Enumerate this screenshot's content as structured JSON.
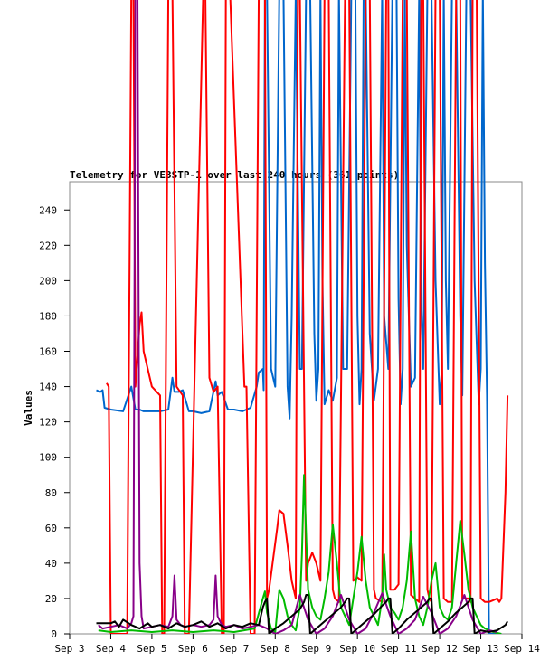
{
  "chart_data": {
    "type": "line",
    "title": "Telemetry for VE3STP-1 over last 240 hours (361 points)",
    "xlabel": "",
    "ylabel": "Values",
    "x_ticks": [
      "Sep 3",
      "Sep 4",
      "Sep 5",
      "Sep 6",
      "Sep 7",
      "Sep 8",
      "Sep 9",
      "Sep 10",
      "Sep 11",
      "Sep 12",
      "Sep 13",
      "Sep 14"
    ],
    "xlim": [
      0,
      11
    ],
    "ylim": [
      0,
      256
    ],
    "y_ticks": [
      0,
      20,
      40,
      60,
      80,
      100,
      120,
      140,
      160,
      180,
      200,
      220,
      240
    ],
    "grid": false,
    "series": [
      {
        "color": "#0066cc",
        "x": [
          0.65,
          0.75,
          0.8,
          0.85,
          1.0,
          1.3,
          1.5,
          1.6,
          1.7,
          1.8,
          2.0,
          2.2,
          2.4,
          2.5,
          2.55,
          2.65,
          2.75,
          2.9,
          3.0,
          3.2,
          3.4,
          3.55,
          3.6,
          3.7,
          3.85,
          4.0,
          4.2,
          4.4,
          4.55,
          4.6,
          4.7,
          4.72,
          4.75,
          4.8,
          4.9,
          5.0,
          5.1,
          5.2,
          5.3,
          5.35,
          5.4,
          5.5,
          5.6,
          5.65,
          5.75,
          5.85,
          5.95,
          6.0,
          6.05,
          6.1,
          6.15,
          6.2,
          6.3,
          6.4,
          6.5,
          6.55,
          6.65,
          6.75,
          6.85,
          6.95,
          7.0,
          7.05,
          7.1,
          7.15,
          7.2,
          7.3,
          7.4,
          7.5,
          7.6,
          7.65,
          7.75,
          7.85,
          7.95,
          8.0,
          8.05,
          8.1,
          8.15,
          8.2,
          8.3,
          8.4,
          8.5,
          8.55,
          8.6,
          8.7,
          8.8,
          8.9,
          9.0,
          9.05,
          9.1,
          9.15,
          9.2,
          9.3,
          9.4,
          9.5,
          9.55,
          9.65,
          9.75,
          9.85,
          9.95,
          10.0,
          10.05,
          10.1,
          10.15,
          10.2,
          10.3,
          10.4,
          10.45,
          10.5
        ],
        "y": [
          138,
          137,
          138,
          128,
          127,
          126,
          140,
          127,
          127,
          126,
          126,
          126,
          127,
          145,
          137,
          137,
          138,
          126,
          126,
          125,
          126,
          143,
          135,
          137,
          127,
          127,
          126,
          128,
          140,
          148,
          150,
          138,
          256,
          256,
          150,
          140,
          256,
          256,
          140,
          122,
          180,
          256,
          150,
          150,
          256,
          256,
          170,
          132,
          150,
          256,
          200,
          130,
          138,
          132,
          145,
          256,
          150,
          150,
          256,
          256,
          180,
          130,
          150,
          256,
          256,
          170,
          132,
          150,
          256,
          180,
          150,
          256,
          256,
          190,
          130,
          150,
          256,
          220,
          140,
          145,
          256,
          190,
          150,
          256,
          256,
          200,
          130,
          150,
          256,
          200,
          150,
          256,
          256,
          180,
          135,
          256,
          256,
          200,
          130,
          150,
          256,
          210,
          135,
          0,
          0,
          0,
          0,
          0
        ]
      },
      {
        "color": "#ff0000",
        "x": [
          0.9,
          0.95,
          1.0,
          1.05,
          1.4,
          1.5,
          1.55,
          1.6,
          1.7,
          1.75,
          1.8,
          2.0,
          2.2,
          2.25,
          2.3,
          2.4,
          2.5,
          2.6,
          2.75,
          2.8,
          2.9,
          3.25,
          3.3,
          3.4,
          3.5,
          3.6,
          3.7,
          3.75,
          3.8,
          3.9,
          4.25,
          4.3,
          4.4,
          4.5,
          4.6,
          4.75,
          4.8,
          4.85,
          5.05,
          5.1,
          5.2,
          5.3,
          5.4,
          5.5,
          5.55,
          5.6,
          5.75,
          5.8,
          5.9,
          6.0,
          6.1,
          6.2,
          6.3,
          6.4,
          6.45,
          6.55,
          6.7,
          6.8,
          6.9,
          7.0,
          7.1,
          7.2,
          7.3,
          7.4,
          7.45,
          7.6,
          7.7,
          7.75,
          7.8,
          7.9,
          8.0,
          8.1,
          8.2,
          8.3,
          8.4,
          8.5,
          8.55,
          8.6,
          8.7,
          8.75,
          8.8,
          8.9,
          9.0,
          9.1,
          9.2,
          9.3,
          9.4,
          9.5,
          9.55,
          9.7,
          9.75,
          9.8,
          9.9,
          10.0,
          10.1,
          10.2,
          10.3,
          10.4,
          10.45,
          10.5,
          10.6,
          10.65
        ],
        "y": [
          142,
          140,
          0,
          0,
          0,
          256,
          256,
          140,
          175,
          182,
          160,
          140,
          135,
          0,
          0,
          256,
          256,
          140,
          135,
          0,
          0,
          256,
          256,
          145,
          137,
          140,
          0,
          0,
          256,
          256,
          140,
          140,
          0,
          0,
          256,
          256,
          20,
          25,
          60,
          70,
          68,
          50,
          30,
          20,
          256,
          256,
          30,
          40,
          46,
          40,
          30,
          256,
          256,
          25,
          20,
          18,
          256,
          256,
          30,
          32,
          30,
          256,
          256,
          25,
          20,
          18,
          256,
          256,
          25,
          25,
          28,
          256,
          256,
          22,
          20,
          18,
          256,
          256,
          25,
          20,
          18,
          256,
          256,
          20,
          18,
          18,
          256,
          256,
          20,
          20,
          18,
          256,
          256,
          20,
          18,
          18,
          19,
          20,
          18,
          20,
          80,
          135
        ]
      },
      {
        "color": "#00bb00",
        "x": [
          0.7,
          1.0,
          1.5,
          2.0,
          2.5,
          3.0,
          3.5,
          4.0,
          4.5,
          4.7,
          4.75,
          4.8,
          4.9,
          5.0,
          5.1,
          5.2,
          5.3,
          5.4,
          5.5,
          5.6,
          5.65,
          5.7,
          5.8,
          5.9,
          6.0,
          6.1,
          6.2,
          6.3,
          6.4,
          6.5,
          6.6,
          6.7,
          6.8,
          6.9,
          7.0,
          7.1,
          7.2,
          7.3,
          7.4,
          7.5,
          7.6,
          7.65,
          7.7,
          7.8,
          7.9,
          8.0,
          8.1,
          8.2,
          8.3,
          8.4,
          8.5,
          8.6,
          8.7,
          8.8,
          8.9,
          9.0,
          9.1,
          9.2,
          9.3,
          9.4,
          9.5,
          9.6,
          9.7,
          9.8,
          9.9,
          10.0,
          10.1,
          10.2,
          10.3,
          10.5
        ],
        "y": [
          2,
          1,
          2,
          1,
          2,
          1,
          2,
          1,
          3,
          20,
          24,
          12,
          3,
          1,
          25,
          20,
          10,
          5,
          2,
          15,
          45,
          90,
          25,
          15,
          10,
          8,
          20,
          35,
          62,
          40,
          15,
          10,
          5,
          20,
          35,
          55,
          30,
          15,
          10,
          5,
          20,
          45,
          25,
          15,
          12,
          8,
          15,
          30,
          58,
          20,
          10,
          5,
          15,
          30,
          40,
          15,
          10,
          8,
          15,
          40,
          64,
          45,
          25,
          15,
          10,
          5,
          3,
          2,
          1,
          0
        ]
      },
      {
        "color": "#880088",
        "x": [
          0.7,
          0.8,
          1.0,
          1.2,
          1.4,
          1.5,
          1.55,
          1.6,
          1.62,
          1.65,
          1.7,
          1.75,
          1.8,
          2.0,
          2.2,
          2.4,
          2.5,
          2.55,
          2.6,
          2.7,
          2.8,
          3.0,
          3.2,
          3.4,
          3.5,
          3.55,
          3.6,
          3.7,
          3.8,
          4.0,
          4.2,
          4.4,
          4.6,
          4.8,
          5.0,
          5.2,
          5.4,
          5.6,
          5.8,
          6.0,
          6.2,
          6.4,
          6.6,
          6.8,
          7.0,
          7.2,
          7.4,
          7.6,
          7.8,
          8.0,
          8.2,
          8.4,
          8.6,
          8.8,
          9.0,
          9.2,
          9.4,
          9.6,
          9.8,
          10.0,
          10.2,
          10.4
        ],
        "y": [
          5,
          3,
          4,
          5,
          3,
          6,
          10,
          256,
          256,
          256,
          40,
          10,
          3,
          4,
          5,
          4,
          10,
          33,
          8,
          5,
          4,
          5,
          4,
          5,
          8,
          33,
          10,
          5,
          4,
          5,
          3,
          4,
          5,
          3,
          0,
          2,
          5,
          22,
          8,
          0,
          3,
          10,
          22,
          8,
          0,
          3,
          12,
          23,
          10,
          0,
          3,
          8,
          21,
          12,
          0,
          3,
          10,
          22,
          8,
          0,
          2,
          1
        ]
      },
      {
        "color": "#000000",
        "x": [
          0.65,
          1.0,
          1.1,
          1.2,
          1.3,
          1.5,
          1.7,
          1.9,
          2.0,
          2.2,
          2.4,
          2.6,
          2.8,
          3.0,
          3.2,
          3.4,
          3.6,
          3.8,
          4.0,
          4.2,
          4.4,
          4.6,
          4.7,
          4.75,
          4.8,
          4.85,
          5.0,
          5.2,
          5.4,
          5.6,
          5.7,
          5.75,
          5.8,
          5.85,
          6.0,
          6.2,
          6.4,
          6.6,
          6.7,
          6.75,
          6.8,
          6.85,
          7.0,
          7.2,
          7.4,
          7.6,
          7.7,
          7.75,
          7.8,
          7.85,
          8.0,
          8.2,
          8.4,
          8.6,
          8.7,
          8.75,
          8.8,
          8.85,
          9.0,
          9.2,
          9.4,
          9.6,
          9.7,
          9.75,
          9.8,
          9.85,
          10.0,
          10.2,
          10.4,
          10.6,
          10.65
        ],
        "y": [
          6,
          6,
          7,
          4,
          8,
          5,
          3,
          6,
          4,
          5,
          3,
          6,
          4,
          5,
          7,
          4,
          6,
          3,
          5,
          4,
          6,
          5,
          15,
          18,
          20,
          0,
          3,
          6,
          10,
          14,
          18,
          22,
          22,
          0,
          3,
          7,
          11,
          15,
          18,
          20,
          20,
          0,
          3,
          7,
          11,
          16,
          18,
          20,
          20,
          0,
          3,
          8,
          12,
          16,
          18,
          20,
          20,
          0,
          3,
          7,
          12,
          16,
          18,
          20,
          20,
          0,
          2,
          1,
          2,
          5,
          7
        ]
      }
    ]
  }
}
